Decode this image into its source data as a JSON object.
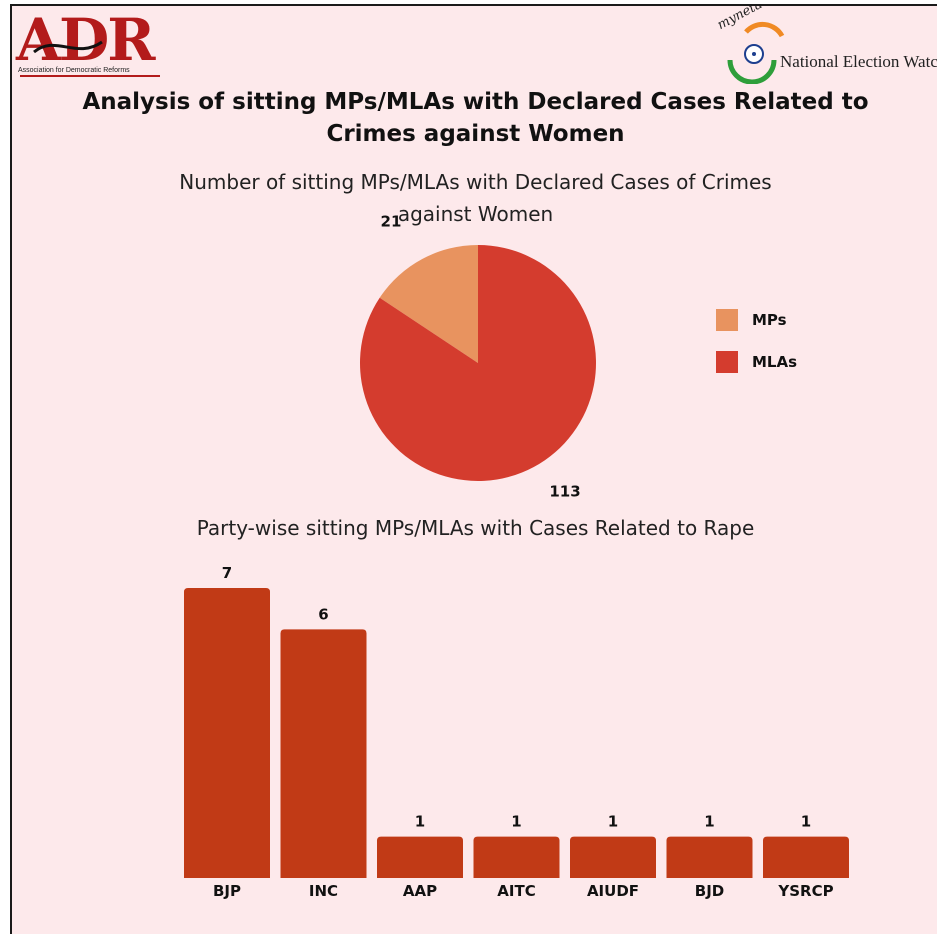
{
  "header": {
    "logo_left": "ADR",
    "logo_left_tagline": "Association for Democratic Reforms",
    "logo_right_site": "myneta.info",
    "logo_right_name": "National Election Watc"
  },
  "title_line1": "Analysis of sitting MPs/MLAs with Declared Cases Related to",
  "title_line2": "Crimes against Women",
  "colors": {
    "background": "#fde9eb",
    "mps": "#e8935f",
    "mlas": "#d43c2e",
    "bars": "#c13a16",
    "logo_red": "#b31b1b"
  },
  "chart_data": [
    {
      "type": "pie",
      "title_line1": "Number of sitting MPs/MLAs with Declared Cases of Crimes",
      "title_line2": "against Women",
      "slices": [
        {
          "label": "MPs",
          "value": 21,
          "color": "#e8935f"
        },
        {
          "label": "MLAs",
          "value": 113,
          "color": "#d43c2e"
        }
      ],
      "legend": "right"
    },
    {
      "type": "bar",
      "title": "Party-wise sitting MPs/MLAs with Cases Related to Rape",
      "categories": [
        "BJP",
        "INC",
        "AAP",
        "AITC",
        "AIUDF",
        "BJD",
        "YSRCP"
      ],
      "values": [
        7,
        6,
        1,
        1,
        1,
        1,
        1
      ],
      "ylim": [
        0,
        7
      ],
      "grid": false
    }
  ]
}
